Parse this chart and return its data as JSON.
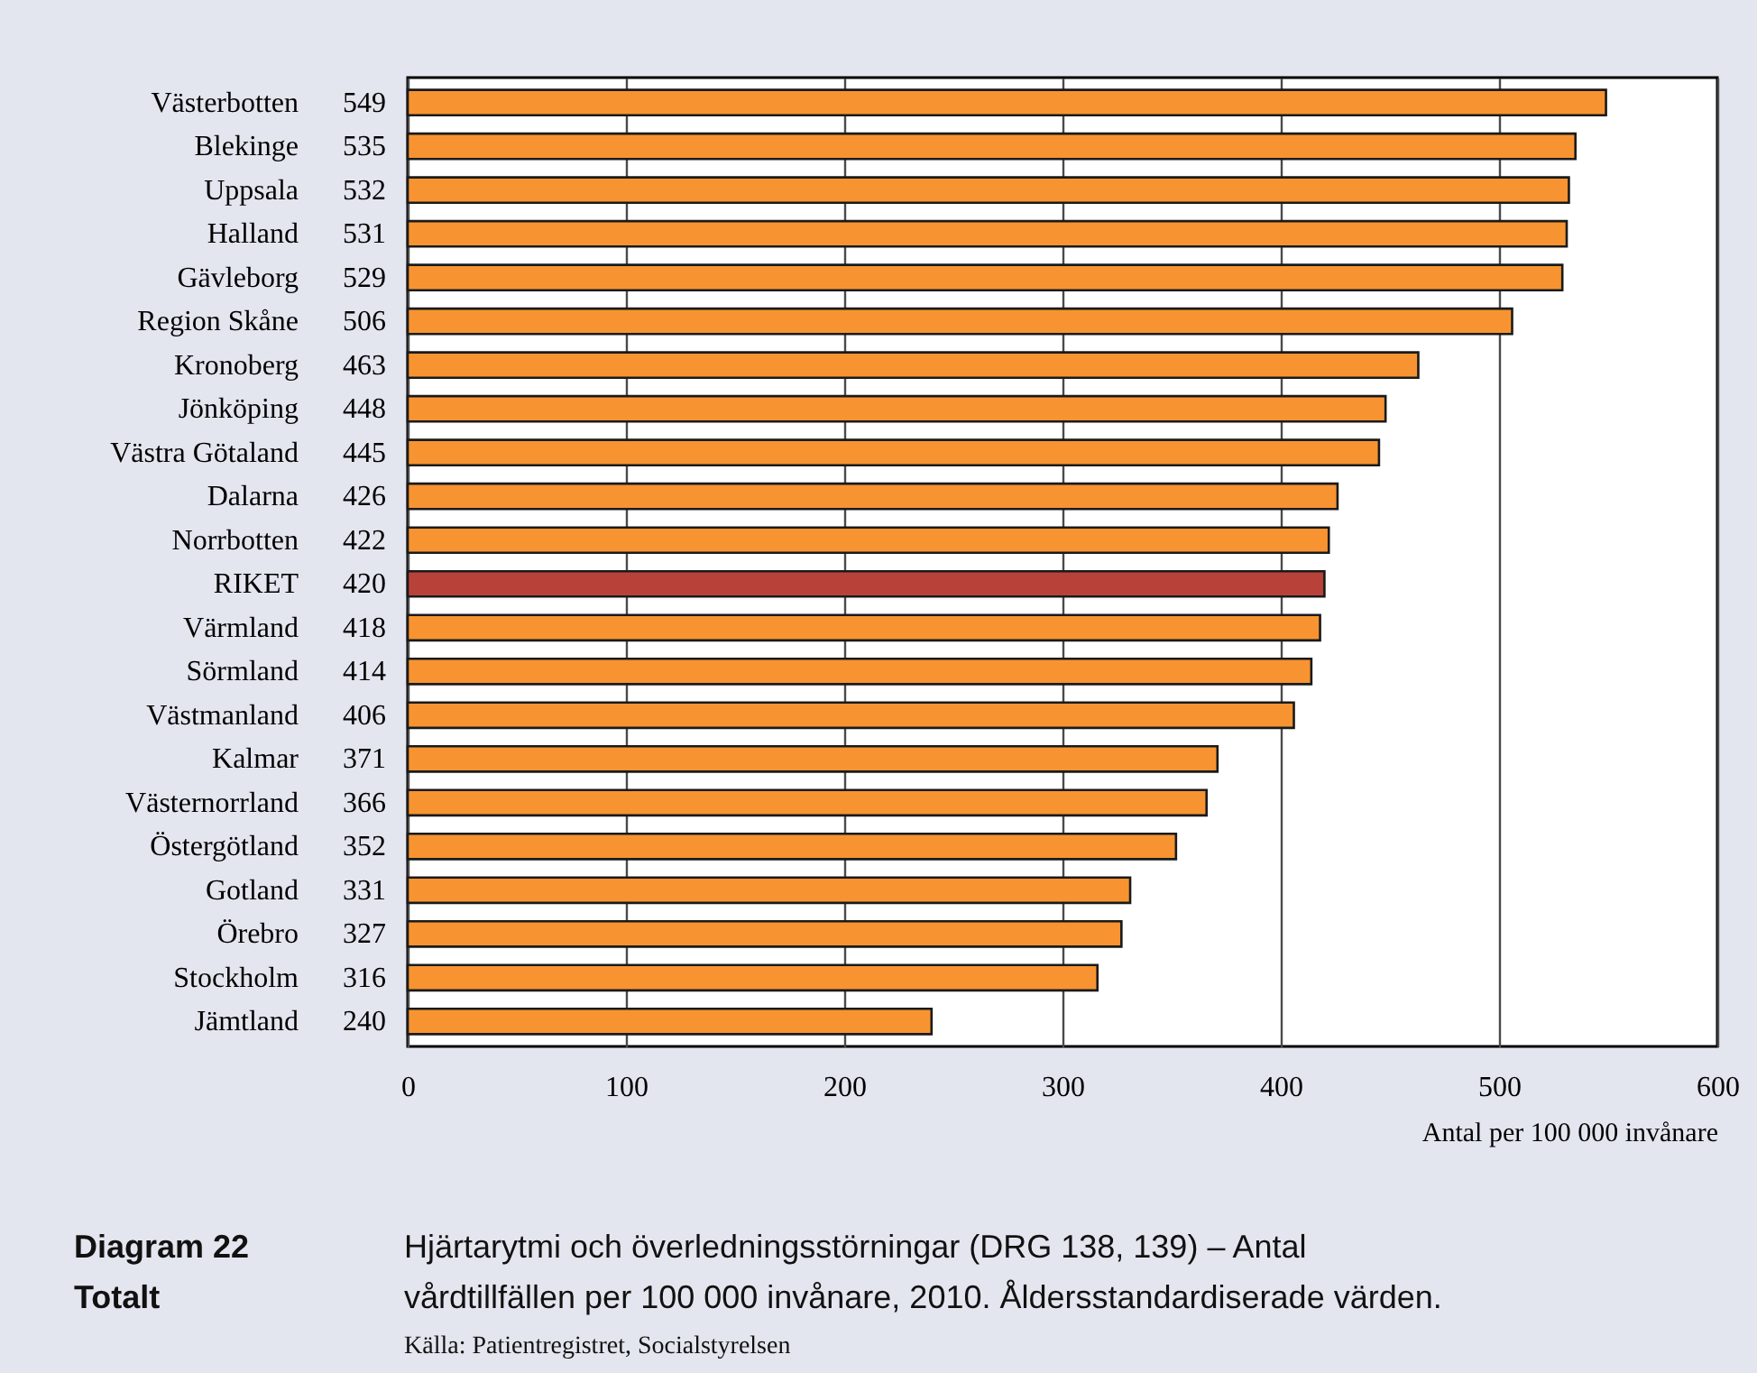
{
  "chart_data": {
    "type": "bar",
    "orientation": "horizontal",
    "title": "Hjärtarytmi och överledningsstörningar (DRG 138, 139) – Antal vårdtillfällen per 100 000 invånare, 2010. Åldersstandardiserade värden.",
    "xlabel": "Antal per 100 000 invånare",
    "categories": [
      "Västerbotten",
      "Blekinge",
      "Uppsala",
      "Halland",
      "Gävleborg",
      "Region Skåne",
      "Kronoberg",
      "Jönköping",
      "Västra Götaland",
      "Dalarna",
      "Norrbotten",
      "RIKET",
      "Värmland",
      "Sörmland",
      "Västmanland",
      "Kalmar",
      "Västernorrland",
      "Östergötland",
      "Gotland",
      "Örebro",
      "Stockholm",
      "Jämtland"
    ],
    "values": [
      549,
      535,
      532,
      531,
      529,
      506,
      463,
      448,
      445,
      426,
      422,
      420,
      418,
      414,
      406,
      371,
      366,
      352,
      331,
      327,
      316,
      240
    ],
    "colors": [
      "#f79431",
      "#f79431",
      "#f79431",
      "#f79431",
      "#f79431",
      "#f79431",
      "#f79431",
      "#f79431",
      "#f79431",
      "#f79431",
      "#f79431",
      "#b8423a",
      "#f79431",
      "#f79431",
      "#f79431",
      "#f79431",
      "#f79431",
      "#f79431",
      "#f79431",
      "#f79431",
      "#f79431",
      "#f79431"
    ],
    "xlim": [
      0,
      600
    ],
    "xticks": [
      0,
      100,
      200,
      300,
      400,
      500,
      600
    ],
    "grid": "x",
    "data_labels": true,
    "annotations": [
      "Diagram 22",
      "Totalt",
      "Källa: Patientregistret, Socialstyrelsen"
    ]
  }
}
